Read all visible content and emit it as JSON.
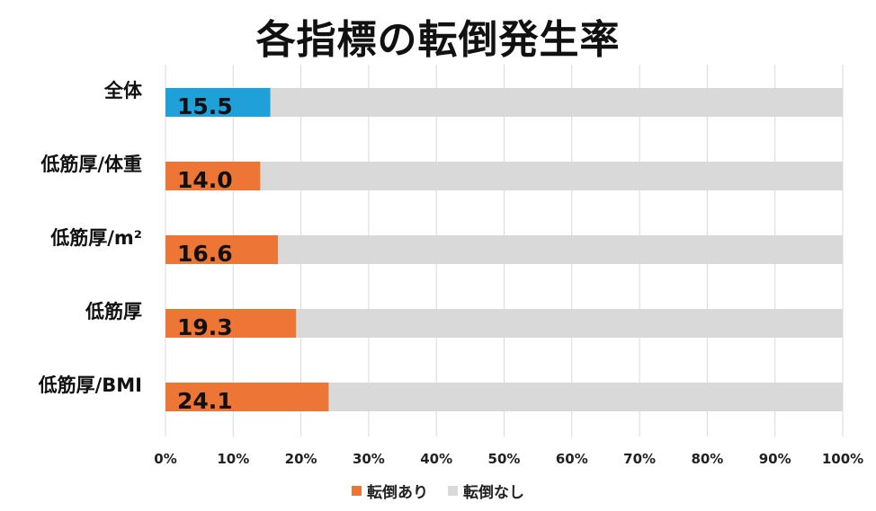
{
  "chart_data": {
    "type": "bar",
    "orientation": "horizontal",
    "stacked": true,
    "title": "各指標の転倒発生率",
    "categories": [
      "全体",
      "低筋厚/体重",
      "低筋厚/m²",
      "低筋厚",
      "低筋厚/BMI"
    ],
    "series": [
      {
        "name": "転倒あり",
        "values": [
          15.5,
          14.0,
          16.6,
          19.3,
          24.1
        ]
      },
      {
        "name": "転倒なし",
        "values": [
          84.5,
          86.0,
          83.4,
          80.7,
          75.9
        ]
      }
    ],
    "value_labels": [
      "15.5",
      "14.0",
      "16.6",
      "19.3",
      "24.1"
    ],
    "xlim": [
      0,
      100
    ],
    "xticks": [
      "0%",
      "10%",
      "20%",
      "30%",
      "40%",
      "50%",
      "60%",
      "70%",
      "80%",
      "90%",
      "100%"
    ],
    "grid": true,
    "legend_position": "bottom",
    "colors": {
      "highlight": "#1fa0d8",
      "fall": "#ed7535",
      "no_fall": "#d9d9d9",
      "grid": "#d9d9d9"
    }
  }
}
